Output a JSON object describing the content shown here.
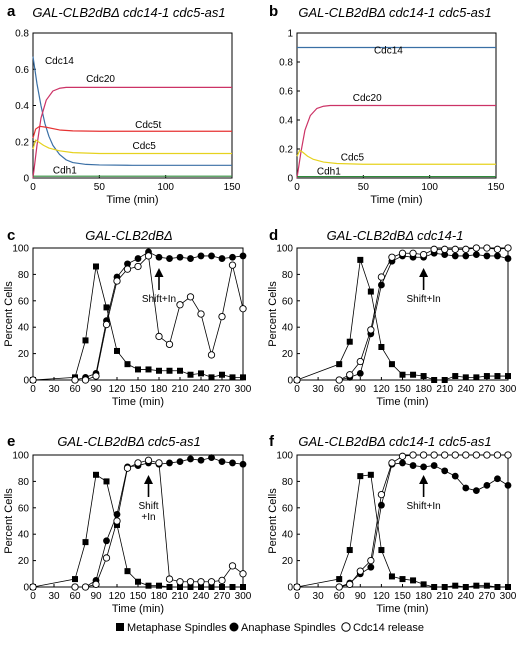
{
  "legend": {
    "metaphase": "Metaphase Spindles",
    "anaphase": "Anaphase Spindles",
    "release": "Cdc14 release"
  },
  "chart_data": [
    {
      "type": "line",
      "panel": "a",
      "title": "GAL-CLB2dBΔ cdc14-1 cdc5-as1",
      "xlabel": "Time (min)",
      "ylabel": "",
      "xlim": [
        0,
        150
      ],
      "ylim": [
        0,
        0.8
      ],
      "xticks": [
        0,
        50,
        100,
        150
      ],
      "yticks": [
        0,
        0.2,
        0.4,
        0.6,
        0.8
      ],
      "ytick_labels": [
        "0",
        "0.2",
        "0.4",
        "0.6",
        "0.8"
      ],
      "series": [
        {
          "name": "Cdc14",
          "color": "#3a6fa5",
          "x": [
            0,
            3,
            6,
            9,
            12,
            15,
            20,
            25,
            30,
            40,
            50,
            75,
            100,
            150
          ],
          "y": [
            0.67,
            0.52,
            0.4,
            0.3,
            0.23,
            0.18,
            0.13,
            0.1,
            0.085,
            0.075,
            0.072,
            0.07,
            0.07,
            0.07
          ]
        },
        {
          "name": "Cdc20",
          "color": "#cc3366",
          "x": [
            0,
            3,
            6,
            10,
            15,
            20,
            25,
            30,
            40,
            60,
            100,
            150
          ],
          "y": [
            0.0,
            0.18,
            0.33,
            0.43,
            0.48,
            0.495,
            0.5,
            0.5,
            0.5,
            0.5,
            0.5,
            0.5
          ]
        },
        {
          "name": "Cdc5t",
          "color": "#e63232",
          "x": [
            0,
            2,
            5,
            10,
            20,
            30,
            50,
            100,
            150
          ],
          "y": [
            0.22,
            0.27,
            0.285,
            0.28,
            0.265,
            0.26,
            0.258,
            0.258,
            0.258
          ]
        },
        {
          "name": "Cdc5",
          "color": "#e6d21e",
          "x": [
            0,
            2,
            4,
            8,
            12,
            20,
            30,
            50,
            100,
            150
          ],
          "y": [
            0.16,
            0.21,
            0.2,
            0.18,
            0.165,
            0.15,
            0.14,
            0.135,
            0.135,
            0.135
          ]
        },
        {
          "name": "Cdh1",
          "color": "#2e8b3a",
          "x": [
            0,
            150
          ],
          "y": [
            0.01,
            0.01
          ]
        }
      ],
      "labels": [
        {
          "series": "Cdc14",
          "x": 9,
          "y": 0.63
        },
        {
          "series": "Cdc20",
          "x": 40,
          "y": 0.53
        },
        {
          "series": "Cdc5t",
          "x": 77,
          "y": 0.275
        },
        {
          "series": "Cdc5",
          "x": 75,
          "y": 0.16
        },
        {
          "series": "Cdh1",
          "x": 15,
          "y": 0.025
        }
      ]
    },
    {
      "type": "line",
      "panel": "b",
      "title": "GAL-CLB2dBΔ cdc14-1 cdc5-as1",
      "xlabel": "Time (min)",
      "ylabel": "",
      "xlim": [
        0,
        150
      ],
      "ylim": [
        0,
        1
      ],
      "xticks": [
        0,
        50,
        100,
        150
      ],
      "yticks": [
        0,
        0.2,
        0.4,
        0.6,
        0.8,
        1
      ],
      "ytick_labels": [
        "0",
        "0.2",
        "0.4",
        "0.6",
        "0.8",
        "1"
      ],
      "series": [
        {
          "name": "Cdc14",
          "color": "#3a6fa5",
          "x": [
            0,
            150
          ],
          "y": [
            0.9,
            0.9
          ]
        },
        {
          "name": "Cdc20",
          "color": "#cc3366",
          "x": [
            0,
            3,
            6,
            10,
            15,
            20,
            25,
            30,
            40,
            60,
            100,
            150
          ],
          "y": [
            0.0,
            0.18,
            0.33,
            0.43,
            0.48,
            0.495,
            0.5,
            0.5,
            0.5,
            0.5,
            0.5,
            0.5
          ]
        },
        {
          "name": "Cdc5",
          "color": "#e6d21e",
          "x": [
            0,
            2,
            4,
            8,
            12,
            20,
            30,
            50,
            100,
            150
          ],
          "y": [
            0.15,
            0.19,
            0.18,
            0.15,
            0.13,
            0.11,
            0.1,
            0.095,
            0.095,
            0.095
          ]
        },
        {
          "name": "Cdh1",
          "color": "#2e8b3a",
          "x": [
            0,
            150
          ],
          "y": [
            0.01,
            0.01
          ]
        }
      ],
      "labels": [
        {
          "series": "Cdc14",
          "x": 58,
          "y": 0.86
        },
        {
          "series": "Cdc20",
          "x": 42,
          "y": 0.53
        },
        {
          "series": "Cdc5",
          "x": 33,
          "y": 0.12
        },
        {
          "series": "Cdh1",
          "x": 15,
          "y": 0.025
        }
      ]
    },
    {
      "type": "line",
      "panel": "c",
      "title": "GAL-CLB2dBΔ",
      "xlabel": "Time (min)",
      "ylabel": "Percent Cells",
      "xlim": [
        0,
        300
      ],
      "ylim": [
        0,
        100
      ],
      "xticks": [
        0,
        30,
        60,
        90,
        120,
        150,
        180,
        210,
        240,
        270,
        300
      ],
      "yticks": [
        0,
        20,
        40,
        60,
        80,
        100
      ],
      "annotation": {
        "text": "Shift+In",
        "x": 180
      },
      "series": [
        {
          "name": "Metaphase Spindles",
          "marker": "square",
          "x": [
            0,
            60,
            75,
            90,
            105,
            120,
            135,
            150,
            165,
            180,
            195,
            210,
            225,
            240,
            255,
            270,
            285,
            300
          ],
          "y": [
            0,
            2,
            30,
            86,
            55,
            22,
            12,
            8,
            8,
            7,
            7,
            7,
            4,
            5,
            2,
            4,
            2,
            2
          ]
        },
        {
          "name": "Anaphase Spindles",
          "marker": "circle-filled",
          "x": [
            0,
            60,
            75,
            90,
            105,
            120,
            135,
            150,
            165,
            180,
            195,
            210,
            225,
            240,
            255,
            270,
            285,
            300
          ],
          "y": [
            0,
            0,
            2,
            5,
            45,
            78,
            88,
            92,
            97,
            93,
            92,
            93,
            92,
            94,
            94,
            92,
            93,
            94
          ]
        },
        {
          "name": "Cdc14 release",
          "marker": "circle-open",
          "x": [
            0,
            60,
            75,
            90,
            105,
            120,
            135,
            150,
            165,
            180,
            195,
            210,
            225,
            240,
            255,
            270,
            285,
            300
          ],
          "y": [
            0,
            0,
            0,
            3,
            42,
            75,
            84,
            86,
            94,
            33,
            27,
            57,
            63,
            50,
            19,
            48,
            87,
            54
          ]
        }
      ]
    },
    {
      "type": "line",
      "panel": "d",
      "title": "GAL-CLB2dBΔ cdc14-1",
      "xlabel": "Time (min)",
      "ylabel": "Percent Cells",
      "xlim": [
        0,
        300
      ],
      "ylim": [
        0,
        100
      ],
      "xticks": [
        0,
        30,
        60,
        90,
        120,
        150,
        180,
        210,
        240,
        270,
        300
      ],
      "yticks": [
        0,
        20,
        40,
        60,
        80,
        100
      ],
      "annotation": {
        "text": "Shift+In",
        "x": 180
      },
      "series": [
        {
          "name": "Metaphase Spindles",
          "marker": "square",
          "x": [
            0,
            60,
            75,
            90,
            105,
            120,
            135,
            150,
            165,
            180,
            195,
            210,
            225,
            240,
            255,
            270,
            285,
            300
          ],
          "y": [
            0,
            12,
            29,
            91,
            67,
            25,
            12,
            4,
            4,
            3,
            0,
            0,
            3,
            2,
            2,
            3,
            3,
            3
          ]
        },
        {
          "name": "Anaphase Spindles",
          "marker": "circle-filled",
          "x": [
            0,
            60,
            75,
            90,
            105,
            120,
            135,
            150,
            165,
            180,
            195,
            210,
            225,
            240,
            255,
            270,
            285,
            300
          ],
          "y": [
            0,
            0,
            2,
            5,
            35,
            72,
            90,
            94,
            93,
            93,
            96,
            95,
            94,
            94,
            95,
            94,
            94,
            92
          ]
        },
        {
          "name": "Cdc14 release",
          "marker": "circle-open",
          "x": [
            0,
            60,
            75,
            90,
            105,
            120,
            135,
            150,
            165,
            180,
            195,
            210,
            225,
            240,
            255,
            270,
            285,
            300
          ],
          "y": [
            0,
            0,
            4,
            14,
            38,
            78,
            93,
            96,
            96,
            95,
            99,
            99,
            99,
            99,
            100,
            100,
            99,
            100
          ]
        }
      ]
    },
    {
      "type": "line",
      "panel": "e",
      "title": "GAL-CLB2dBΔ cdc5-as1",
      "xlabel": "Time (min)",
      "ylabel": "Percent Cells",
      "xlim": [
        0,
        300
      ],
      "ylim": [
        0,
        100
      ],
      "xticks": [
        0,
        30,
        60,
        90,
        120,
        150,
        180,
        210,
        240,
        270,
        300
      ],
      "yticks": [
        0,
        20,
        40,
        60,
        80,
        100
      ],
      "annotation": {
        "text": "Shift\n+In",
        "x": 165
      },
      "series": [
        {
          "name": "Metaphase Spindles",
          "marker": "square",
          "x": [
            0,
            60,
            75,
            90,
            105,
            120,
            135,
            150,
            165,
            180,
            195,
            210,
            225,
            240,
            255,
            270,
            285,
            300
          ],
          "y": [
            0,
            6,
            34,
            85,
            80,
            47,
            12,
            4,
            1,
            1,
            0,
            0,
            0,
            0,
            0,
            0,
            0,
            0
          ]
        },
        {
          "name": "Anaphase Spindles",
          "marker": "circle-filled",
          "x": [
            0,
            60,
            75,
            90,
            105,
            120,
            135,
            150,
            165,
            180,
            195,
            210,
            225,
            240,
            255,
            270,
            285,
            300
          ],
          "y": [
            0,
            0,
            0,
            5,
            35,
            55,
            91,
            92,
            94,
            93,
            94,
            95,
            97,
            96,
            98,
            95,
            94,
            93
          ]
        },
        {
          "name": "Cdc14 release",
          "marker": "circle-open",
          "x": [
            0,
            60,
            75,
            90,
            105,
            120,
            135,
            150,
            165,
            180,
            195,
            210,
            225,
            240,
            255,
            270,
            285,
            300
          ],
          "y": [
            0,
            0,
            0,
            2,
            22,
            50,
            90,
            94,
            96,
            94,
            6,
            4,
            4,
            4,
            4,
            5,
            16,
            10
          ]
        }
      ]
    },
    {
      "type": "line",
      "panel": "f",
      "title": "GAL-CLB2dBΔ cdc14-1 cdc5-as1",
      "xlabel": "Time (min)",
      "ylabel": "Percent Cells",
      "xlim": [
        0,
        300
      ],
      "ylim": [
        0,
        100
      ],
      "xticks": [
        0,
        30,
        60,
        90,
        120,
        150,
        180,
        210,
        240,
        270,
        300
      ],
      "yticks": [
        0,
        20,
        40,
        60,
        80,
        100
      ],
      "annotation": {
        "text": "Shift+In",
        "x": 180
      },
      "series": [
        {
          "name": "Metaphase Spindles",
          "marker": "square",
          "x": [
            0,
            60,
            75,
            90,
            105,
            120,
            135,
            150,
            165,
            180,
            195,
            210,
            225,
            240,
            255,
            270,
            285,
            300
          ],
          "y": [
            0,
            6,
            28,
            84,
            85,
            28,
            8,
            6,
            5,
            2,
            0,
            0,
            1,
            0,
            1,
            1,
            0,
            0
          ]
        },
        {
          "name": "Anaphase Spindles",
          "marker": "circle-filled",
          "x": [
            0,
            60,
            75,
            90,
            105,
            120,
            135,
            150,
            165,
            180,
            195,
            210,
            225,
            240,
            255,
            270,
            285,
            300
          ],
          "y": [
            0,
            0,
            3,
            10,
            15,
            62,
            93,
            94,
            92,
            91,
            92,
            88,
            84,
            75,
            73,
            77,
            82,
            77
          ]
        },
        {
          "name": "Cdc14 release",
          "marker": "circle-open",
          "x": [
            0,
            60,
            75,
            90,
            105,
            120,
            135,
            150,
            165,
            180,
            195,
            210,
            225,
            240,
            255,
            270,
            285,
            300
          ],
          "y": [
            0,
            0,
            2,
            12,
            20,
            70,
            94,
            99,
            100,
            100,
            100,
            100,
            100,
            100,
            100,
            100,
            100,
            100
          ]
        }
      ]
    }
  ]
}
